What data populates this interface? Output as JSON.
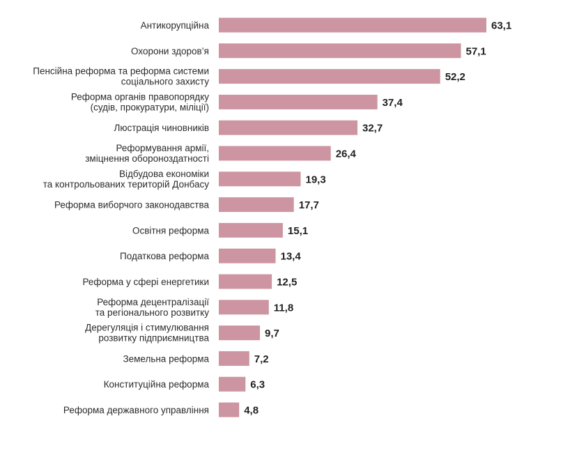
{
  "chart_data": {
    "type": "bar",
    "orientation": "horizontal",
    "categories": [
      [
        "Антикорупційна"
      ],
      [
        "Охорони здоров’я"
      ],
      [
        "Пенсійна реформа та реформа системи",
        "соціального захисту"
      ],
      [
        "Реформа органів правопорядку",
        "(судів, прокуратури, міліції)"
      ],
      [
        "Люстрація чиновників"
      ],
      [
        "Реформування армії,",
        "зміцнення обороноздатності"
      ],
      [
        "Відбудова економіки",
        "та контрольованих територій Донбасу"
      ],
      [
        "Реформа виборчого законодавства"
      ],
      [
        "Освітня реформа"
      ],
      [
        "Податкова реформа"
      ],
      [
        "Реформа у сфері енергетики"
      ],
      [
        "Реформа децентралізації",
        "та регіонального розвитку"
      ],
      [
        "Дерегуляція і стимулювання",
        "розвитку підприємництва"
      ],
      [
        "Земельна реформа"
      ],
      [
        "Конституційна реформа"
      ],
      [
        "Реформа державного управління"
      ]
    ],
    "values": [
      63.1,
      57.1,
      52.2,
      37.4,
      32.7,
      26.4,
      19.3,
      17.7,
      15.1,
      13.4,
      12.5,
      11.8,
      9.7,
      7.2,
      6.3,
      4.8
    ],
    "value_labels": [
      "63,1",
      "57,1",
      "52,2",
      "37,4",
      "32,7",
      "26,4",
      "19,3",
      "17,7",
      "15,1",
      "13,4",
      "12,5",
      "11,8",
      "9,7",
      "7,2",
      "6,3",
      "4,8"
    ],
    "xlim": [
      0,
      63.1
    ],
    "bar_color": "#cc95a1",
    "grid": false,
    "legend": "none"
  }
}
